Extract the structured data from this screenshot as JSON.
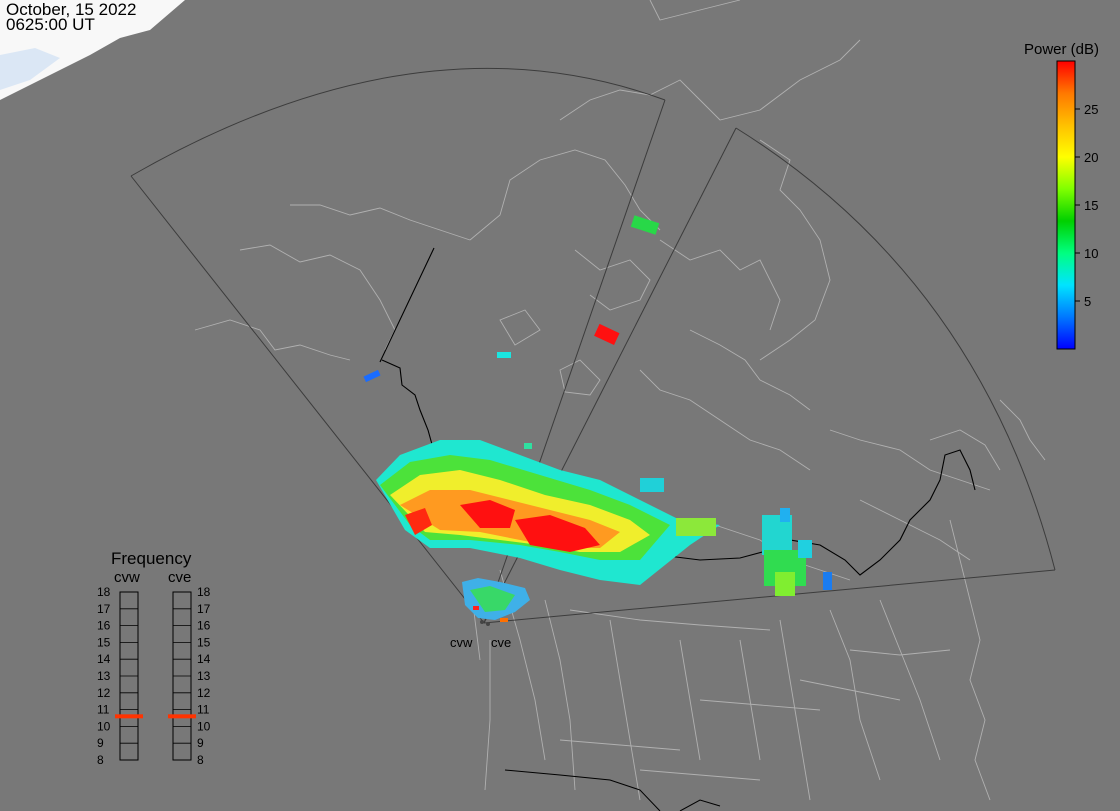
{
  "header": {
    "date": "October, 15 2022",
    "time": "0625:00 UT"
  },
  "colorbar": {
    "title": "Power (dB)",
    "ticks": [
      "25",
      "20",
      "15",
      "10",
      "5"
    ],
    "range": [
      0,
      30
    ],
    "colors": [
      "#0000ff",
      "#0078ff",
      "#00e4ff",
      "#00ff80",
      "#00d000",
      "#80ff00",
      "#ffff00",
      "#ffc000",
      "#ff7800",
      "#ff0000"
    ]
  },
  "radars": {
    "west_label": "cvw",
    "east_label": "cve"
  },
  "frequency": {
    "title": "Frequency",
    "col_west": "cvw",
    "col_east": "cve",
    "scale": [
      "18",
      "17",
      "16",
      "15",
      "14",
      "13",
      "12",
      "11",
      "10",
      "9",
      "8"
    ],
    "west_value_mhz": 10.6,
    "east_value_mhz": 10.6,
    "marker_color": "#ff3300"
  },
  "colors": {
    "background": "#787878",
    "land": "#7a7a7a",
    "ice": "#ffffff",
    "outline": "#b4b4b4",
    "fov": "#3c3c3c",
    "border": "#000000"
  }
}
